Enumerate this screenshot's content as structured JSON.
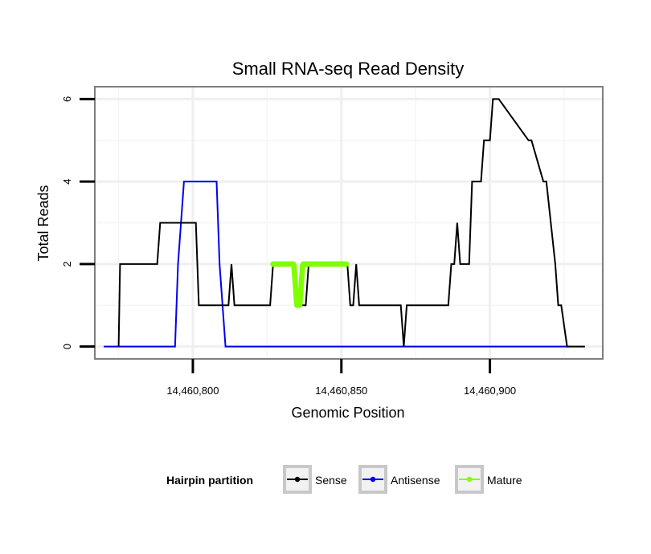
{
  "chart_data": {
    "type": "line",
    "title": "Small RNA-seq Read Density",
    "xlabel": "Genomic Position",
    "ylabel": "Total Reads",
    "xlim": [
      14460767,
      14460938
    ],
    "ylim": [
      -0.3,
      6.3
    ],
    "x_ticks": [
      14460800,
      14460850,
      14460900
    ],
    "x_tick_labels": [
      "14,460,800",
      "14,460,850",
      "14,460,900"
    ],
    "y_ticks": [
      0,
      2,
      4,
      6
    ],
    "y_tick_labels": [
      "0",
      "2",
      "4",
      "6"
    ],
    "grid": true,
    "legend": {
      "title": "Hairpin partition",
      "position": "bottom",
      "entries": [
        "Sense",
        "Antisense",
        "Mature"
      ]
    },
    "series": [
      {
        "name": "Sense",
        "color": "#000000",
        "x": [
          14460775,
          14460775.5,
          14460776,
          14460788,
          14460789,
          14460801,
          14460802,
          14460812,
          14460813,
          14460814,
          14460826,
          14460827,
          14460834,
          14460835,
          14460838,
          14460839,
          14460852,
          14460853,
          14460854,
          14460855,
          14460856,
          14460870,
          14460871,
          14460872,
          14460886,
          14460887,
          14460888,
          14460889,
          14460890,
          14460893,
          14460894,
          14460897,
          14460898,
          14460900,
          14460901,
          14460903,
          14460913,
          14460914,
          14460918,
          14460919,
          14460922,
          14460923,
          14460924,
          14460926,
          14460927,
          14460932
        ],
        "y": [
          0,
          2,
          2,
          2,
          3,
          3,
          1,
          1,
          2,
          1,
          1,
          2,
          2,
          1,
          1,
          2,
          2,
          1,
          1,
          2,
          1,
          1,
          0,
          1,
          1,
          2,
          2,
          3,
          2,
          2,
          4,
          4,
          5,
          5,
          6,
          6,
          5,
          5,
          4,
          4,
          2,
          1,
          1,
          0,
          0,
          0
        ]
      },
      {
        "name": "Antisense",
        "color": "#0000ee",
        "x": [
          14460770,
          14460794,
          14460795,
          14460797,
          14460808,
          14460809,
          14460811,
          14460927
        ],
        "y": [
          0,
          0,
          2,
          4,
          4,
          2,
          0,
          0
        ]
      },
      {
        "name": "Mature",
        "color": "#7fff00",
        "x": [
          14460827,
          14460834,
          14460835,
          14460836,
          14460837,
          14460838,
          14460839,
          14460852
        ],
        "y": [
          2,
          2,
          1,
          1,
          2,
          2,
          2,
          2
        ]
      }
    ]
  }
}
